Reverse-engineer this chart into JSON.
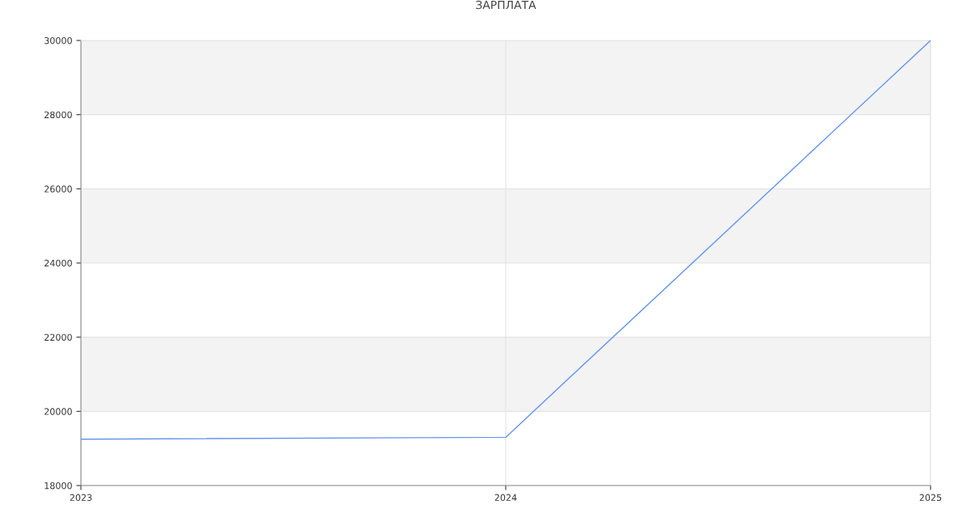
{
  "chart_data": {
    "type": "line",
    "title": "ЗАРПЛАТА",
    "x": [
      2023,
      2024,
      2025
    ],
    "series": [
      {
        "color": "#6495ed",
        "values": [
          19250,
          19300,
          30000
        ]
      }
    ],
    "xlim": [
      2023,
      2025
    ],
    "xticks": [
      2023,
      2024,
      2025
    ],
    "ylim": [
      18000,
      30000
    ],
    "yticks": [
      18000,
      20000,
      22000,
      24000,
      26000,
      28000,
      30000
    ],
    "bands": [
      {
        "axis": "y",
        "from": 20000,
        "to": 22000,
        "color": "#f3f3f3"
      },
      {
        "axis": "y",
        "from": 24000,
        "to": 26000,
        "color": "#f3f3f3"
      },
      {
        "axis": "y",
        "from": 28000,
        "to": 30000,
        "color": "#f3f3f3"
      }
    ],
    "grid": true,
    "legend": false,
    "marker": "none",
    "line_style": "solid"
  }
}
